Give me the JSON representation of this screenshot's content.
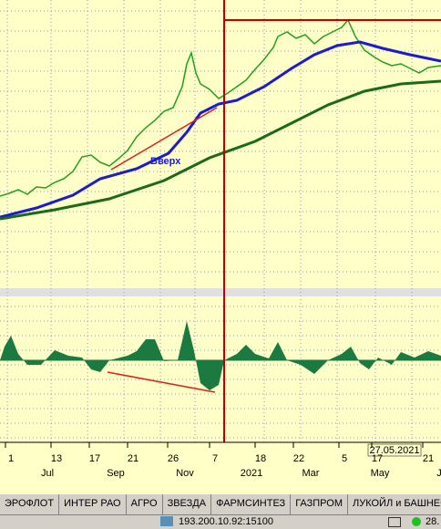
{
  "chart": {
    "annotation": "Вверх",
    "date_label": "27.05.2021",
    "x_labels_top": [
      "1",
      "13",
      "17",
      "21",
      "26",
      "7",
      "18",
      "22",
      "5",
      "17",
      "21"
    ],
    "x_labels_bottom": [
      "Jul",
      "Sep",
      "Nov",
      "2021",
      "Mar",
      "May",
      "J"
    ]
  },
  "tabs": [
    "ЭРОФЛОТ",
    "ИНТЕР РАО",
    "АГРО",
    "ЗВЕЗДА",
    "ФАРМСИНТЕЗ",
    "ГАЗПРОМ",
    "ЛУКОЙЛ и БАШНЕФ"
  ],
  "status": {
    "server": "193.200.10.92:15100",
    "value": "28."
  }
}
